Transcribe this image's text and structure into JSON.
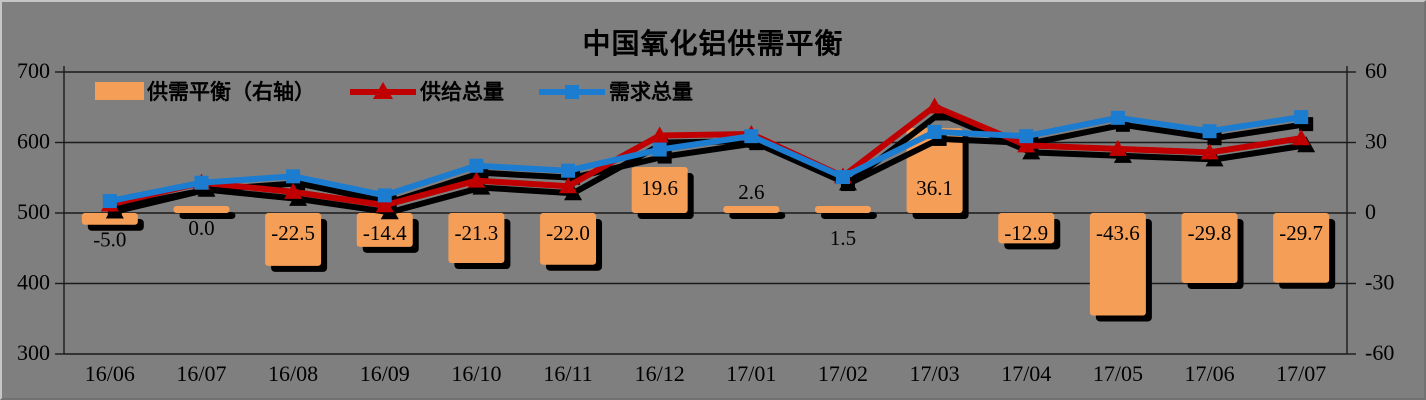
{
  "window": {
    "title": "中国氧化铝供需平衡"
  },
  "colors": {
    "background": "#7f7f7f",
    "bar": "#F49E58",
    "supply_line": "#C00000",
    "demand_line": "#1B7CD0",
    "shadow": "#000000",
    "grid": "#1a1a1a",
    "text": "#000000"
  },
  "legend": {
    "balance_label": "供需平衡（右轴）",
    "supply_label": "供给总量",
    "demand_label": "需求总量"
  },
  "chart_data": {
    "type": "combo-bar-line",
    "title": "中国氧化铝供需平衡",
    "categories": [
      "16/06",
      "16/07",
      "16/08",
      "16/09",
      "16/10",
      "16/11",
      "16/12",
      "17/01",
      "17/02",
      "17/03",
      "17/04",
      "17/05",
      "17/06",
      "17/07"
    ],
    "series": [
      {
        "name": "供需平衡（右轴）",
        "type": "bar",
        "axis": "right",
        "color": "#F49E58",
        "values": [
          -5.0,
          0.0,
          -22.5,
          -14.4,
          -21.3,
          -22.0,
          19.6,
          2.6,
          1.5,
          36.1,
          -12.9,
          -43.6,
          -29.8,
          -29.7
        ],
        "labels": [
          "-5.0",
          "0.0",
          "-22.5",
          "-14.4",
          "-21.3",
          "-22.0",
          "19.6",
          "2.6",
          "1.5",
          "36.1",
          "-12.9",
          "-43.6",
          "-29.8",
          "-29.7"
        ],
        "label_pos": [
          "below",
          "below",
          "inside",
          "inside",
          "inside",
          "inside",
          "inside",
          "above",
          "below-far",
          "inside-mid",
          "inside",
          "inside",
          "inside",
          "inside"
        ]
      },
      {
        "name": "供给总量",
        "type": "line",
        "axis": "left",
        "marker": "triangle",
        "color": "#C00000",
        "values": [
          512,
          543,
          530,
          511,
          546,
          538,
          610,
          612,
          552,
          651,
          596,
          591,
          586,
          606
        ]
      },
      {
        "name": "需求总量",
        "type": "line",
        "axis": "left",
        "marker": "square",
        "color": "#1B7CD0",
        "values": [
          517,
          543,
          552,
          525,
          567,
          560,
          590,
          609,
          551,
          615,
          609,
          635,
          616,
          636
        ]
      }
    ],
    "left_axis": {
      "min": 300,
      "max": 700,
      "step": 100,
      "ticks": [
        "700",
        "600",
        "500",
        "400",
        "300"
      ]
    },
    "right_axis": {
      "min": -60,
      "max": 60,
      "step": 30,
      "ticks": [
        "60",
        "30",
        "0",
        "-30",
        "-60"
      ]
    },
    "grid": true,
    "legend_position": "top-left-inside"
  }
}
